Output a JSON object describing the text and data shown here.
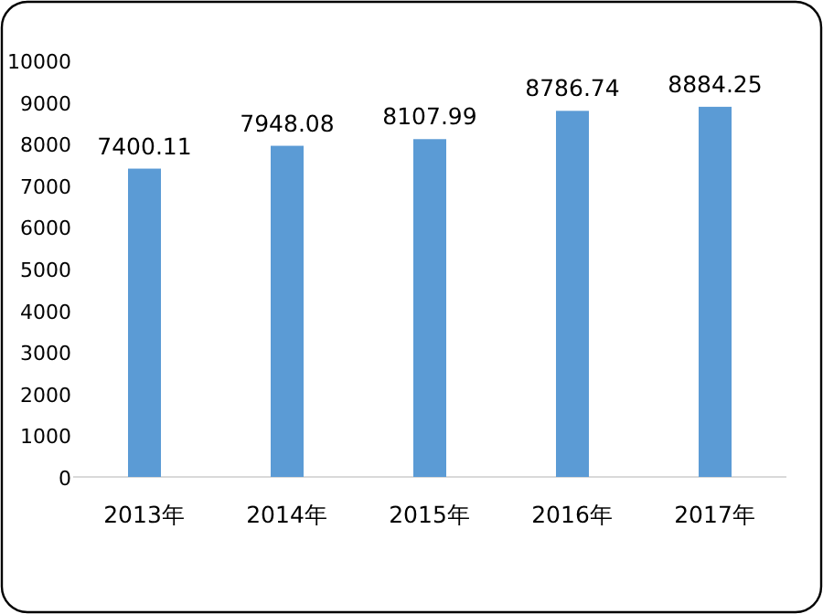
{
  "chart_data": {
    "type": "bar",
    "categories": [
      "2013年",
      "2014年",
      "2015年",
      "2016年",
      "2017年"
    ],
    "values": [
      7400.11,
      7948.08,
      8107.99,
      8786.74,
      8884.25
    ],
    "color": "#5b9bd5",
    "ylim": [
      0,
      10000
    ],
    "yticks": [
      0,
      1000,
      2000,
      3000,
      4000,
      5000,
      6000,
      7000,
      8000,
      9000,
      10000
    ],
    "data_labels": true
  }
}
